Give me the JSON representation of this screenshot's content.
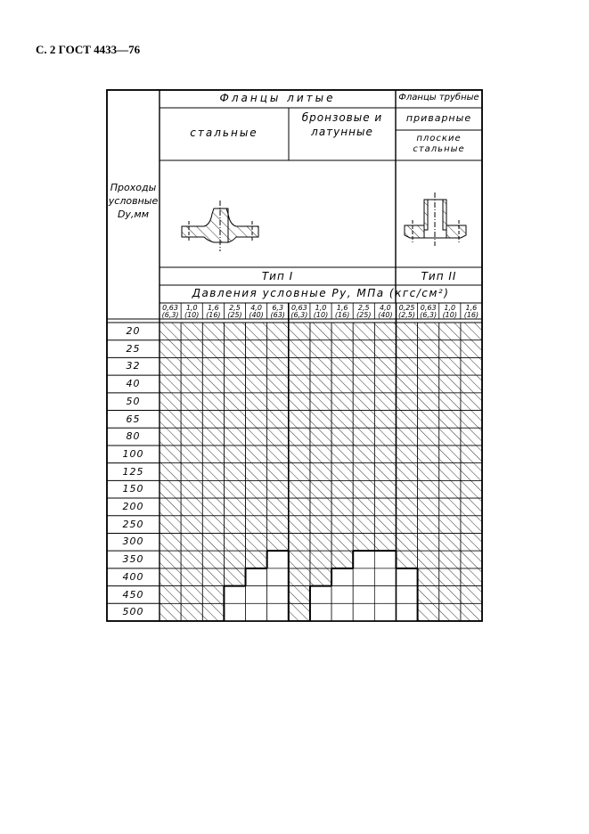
{
  "page_header": "С. 2 ГОСТ 4433—76",
  "table": {
    "stub_header": [
      "Проходы",
      "условные",
      "Dу,мм"
    ],
    "cast_flanges": "Фланцы литые",
    "steel": "стальные",
    "bronze": [
      "бронзовые и",
      "латунные"
    ],
    "pipe_flanges": "Фланцы трубные",
    "welded": "приварные",
    "flat_steel": [
      "плоские",
      "стальные"
    ],
    "type1": "Тип I",
    "type2": "Тип II",
    "pressure_header": "Давления условные Pу, МПа (кгс/см²)",
    "pressures": [
      [
        "0,63",
        "(6,3)"
      ],
      [
        "1,0",
        "(10)"
      ],
      [
        "1,6",
        "(16)"
      ],
      [
        "2,5",
        "(25)"
      ],
      [
        "4,0",
        "(40)"
      ],
      [
        "6,3",
        "(63)"
      ],
      [
        "0,63",
        "(6,3)"
      ],
      [
        "1,0",
        "(10)"
      ],
      [
        "1,6",
        "(16)"
      ],
      [
        "2,5",
        "(25)"
      ],
      [
        "4,0",
        "(40)"
      ],
      [
        "0,25",
        "(2,5)"
      ],
      [
        "0,63",
        "(6,3)"
      ],
      [
        "1,0",
        "(10)"
      ],
      [
        "1,6",
        "(16)"
      ]
    ],
    "rows": [
      {
        "dn": "20",
        "applicable": "111111111111111"
      },
      {
        "dn": "25",
        "applicable": "111111111111111"
      },
      {
        "dn": "32",
        "applicable": "111111111111111"
      },
      {
        "dn": "40",
        "applicable": "111111111111111"
      },
      {
        "dn": "50",
        "applicable": "111111111111111"
      },
      {
        "dn": "65",
        "applicable": "111111111111111"
      },
      {
        "dn": "80",
        "applicable": "111111111111111"
      },
      {
        "dn": "100",
        "applicable": "111111111111111"
      },
      {
        "dn": "125",
        "applicable": "111111111111111"
      },
      {
        "dn": "150",
        "applicable": "111111111111111"
      },
      {
        "dn": "200",
        "applicable": "111111111111111"
      },
      {
        "dn": "250",
        "applicable": "111111111111111"
      },
      {
        "dn": "300",
        "applicable": "111111111111111"
      },
      {
        "dn": "350",
        "applicable": "111110111001111"
      },
      {
        "dn": "400",
        "applicable": "111100110000111"
      },
      {
        "dn": "450",
        "applicable": "111000100000111"
      },
      {
        "dn": "500",
        "applicable": "111000100000111"
      }
    ]
  }
}
